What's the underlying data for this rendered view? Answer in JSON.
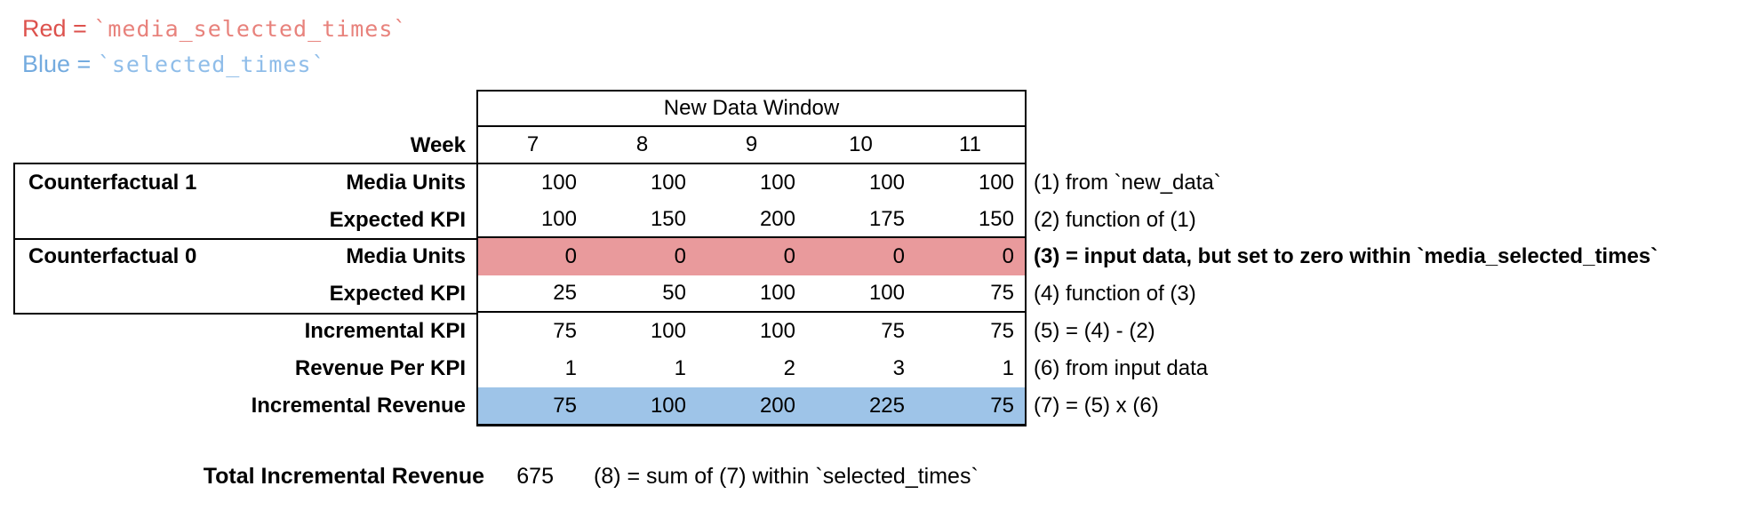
{
  "legend": [
    {
      "word": "Red",
      "sep": " = ",
      "code": "`media_selected_times`",
      "word_color": "#dd524d",
      "code_color": "#e8827c"
    },
    {
      "word": "Blue",
      "sep": " = ",
      "code": "`selected_times`",
      "word_color": "#74abdf",
      "code_color": "#8fbde9"
    }
  ],
  "table": {
    "header": "New Data Window",
    "week_label": "Week",
    "weeks": [
      "7",
      "8",
      "9",
      "10",
      "11"
    ],
    "rows": [
      {
        "group": "Counterfactual 1",
        "label": "Media Units",
        "values": [
          "100",
          "100",
          "100",
          "100",
          "100"
        ],
        "fill": "none",
        "note": "(1) from `new_data`",
        "note_bold": false
      },
      {
        "group": "",
        "label": "Expected KPI",
        "values": [
          "100",
          "150",
          "200",
          "175",
          "150"
        ],
        "fill": "none",
        "note": "(2) function of (1)",
        "note_bold": false
      },
      {
        "group": "Counterfactual 0",
        "label": "Media Units",
        "values": [
          "0",
          "0",
          "0",
          "0",
          "0"
        ],
        "fill": "red",
        "note": "(3) = input data, but set to zero within `media_selected_times`",
        "note_bold": true
      },
      {
        "group": "",
        "label": "Expected KPI",
        "values": [
          "25",
          "50",
          "100",
          "100",
          "75"
        ],
        "fill": "none",
        "note": "(4) function of (3)",
        "note_bold": false
      },
      {
        "group": "",
        "label": "Incremental KPI",
        "values": [
          "75",
          "100",
          "100",
          "75",
          "75"
        ],
        "fill": "none",
        "note": "(5) = (4) - (2)",
        "note_bold": false
      },
      {
        "group": "",
        "label": "Revenue Per KPI",
        "values": [
          "1",
          "1",
          "2",
          "3",
          "1"
        ],
        "fill": "none",
        "note": "(6) from input data",
        "note_bold": false
      },
      {
        "group": "",
        "label": "Incremental Revenue",
        "values": [
          "75",
          "100",
          "200",
          "225",
          "75"
        ],
        "fill": "blue",
        "note": "(7) = (5) x (6)",
        "note_bold": false
      }
    ]
  },
  "total": {
    "label": "Total Incremental Revenue",
    "value": "675",
    "note": "(8) = sum of (7) within `selected_times`"
  },
  "colors": {
    "red_fill": "#e99a9c",
    "blue_fill": "#9ec4e8",
    "border": "#000000"
  }
}
